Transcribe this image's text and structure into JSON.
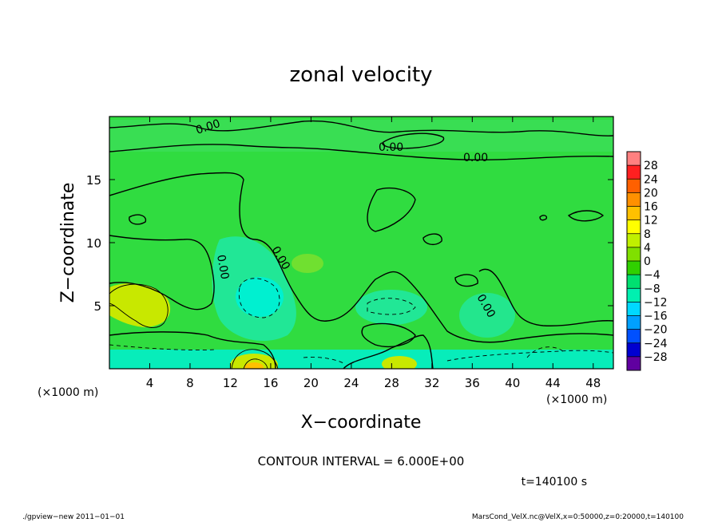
{
  "chart_data": {
    "type": "heatmap",
    "title": "zonal velocity",
    "xlabel": "X−coordinate",
    "ylabel": "Z−coordinate",
    "x_unit": "(×1000 m)",
    "y_unit": "(×1000 m)",
    "xlim": [
      0,
      50
    ],
    "ylim": [
      0,
      20
    ],
    "x_ticks": [
      4,
      8,
      12,
      16,
      20,
      24,
      28,
      32,
      36,
      40,
      44,
      48
    ],
    "y_ticks": [
      5,
      10,
      15
    ],
    "colorbar": {
      "ticks": [
        "28",
        "24",
        "20",
        "16",
        "12",
        "8",
        "4",
        "0",
        "−4",
        "−8",
        "−12",
        "−16",
        "−20",
        "−24",
        "−28"
      ],
      "colors": [
        "#ff8080",
        "#ff2020",
        "#ff6000",
        "#ff9000",
        "#ffc000",
        "#ffff00",
        "#c0f000",
        "#80e000",
        "#30d000",
        "#00e070",
        "#00f0b0",
        "#00d8ff",
        "#00a0ff",
        "#0050ff",
        "#0000d0",
        "#6000a0"
      ]
    },
    "contour_labels": [
      "0.00",
      "0.00",
      "0.00",
      "0.00",
      "0.00",
      "0.00"
    ],
    "contour_interval": "CONTOUR INTERVAL = 6.000E+00",
    "time_label": "t=140100  s"
  },
  "footer": {
    "left": "./gpview−new   2011−01−01",
    "right": "MarsCond_VelX.nc@VelX,x=0:50000,z=0:20000,t=140100"
  },
  "colors": {
    "field": "#30dc40",
    "strong_positive": "#c8e800",
    "weak_negative": "#20e880",
    "negative": "#00f0d0"
  }
}
